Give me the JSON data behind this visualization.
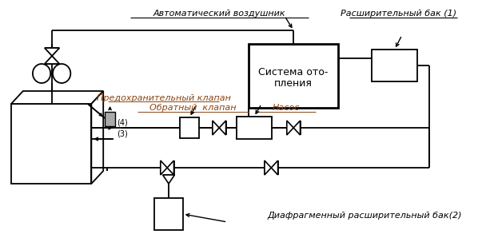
{
  "figsize": [
    6.18,
    2.98
  ],
  "dpi": 100,
  "labels": {
    "auto_air": "Автоматический воздушник",
    "expansion_tank": "Расширительный бак (1)",
    "safety_valve": "Предохранительный клапан",
    "check_valve": "Обратный  клапан",
    "pump": "Насос",
    "diaphragm_tank": "Диафрагменный расширительный бак(2)",
    "heating_line1": "Система ото-",
    "heating_line2": "пления",
    "port4": "(4)",
    "port3": "(3)"
  }
}
